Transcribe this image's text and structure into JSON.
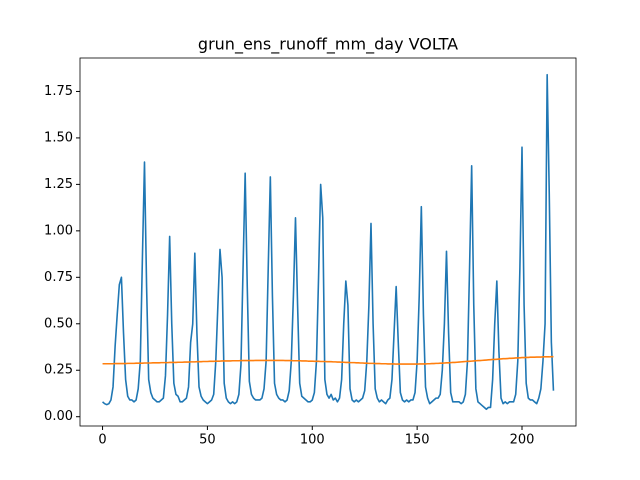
{
  "chart_data": {
    "type": "line",
    "title": "grun_ens_runoff_mm_day VOLTA",
    "xlim": [
      -10.75,
      225.75
    ],
    "xticks": [
      0,
      50,
      100,
      150,
      200
    ],
    "ylim": [
      -0.05,
      1.93
    ],
    "yticks": [
      {
        "value": 0,
        "label": "0.00"
      },
      {
        "value": 0.25,
        "label": "0.25"
      },
      {
        "value": 0.5,
        "label": "0.50"
      },
      {
        "value": 0.75,
        "label": "0.75"
      },
      {
        "value": 1,
        "label": "1.00"
      },
      {
        "value": 1.25,
        "label": "1.25"
      },
      {
        "value": 1.5,
        "label": "1.50"
      },
      {
        "value": 1.75,
        "label": "1.75"
      }
    ],
    "series": [
      {
        "color": "#1f77b4",
        "values": [
          0.08,
          0.07,
          0.065,
          0.07,
          0.09,
          0.16,
          0.38,
          0.55,
          0.71,
          0.75,
          0.45,
          0.2,
          0.11,
          0.09,
          0.09,
          0.08,
          0.09,
          0.15,
          0.3,
          0.85,
          1.37,
          0.7,
          0.2,
          0.13,
          0.1,
          0.09,
          0.08,
          0.08,
          0.09,
          0.1,
          0.22,
          0.55,
          0.97,
          0.5,
          0.18,
          0.12,
          0.11,
          0.08,
          0.08,
          0.09,
          0.1,
          0.16,
          0.4,
          0.5,
          0.88,
          0.45,
          0.16,
          0.11,
          0.09,
          0.08,
          0.07,
          0.08,
          0.09,
          0.12,
          0.3,
          0.6,
          0.9,
          0.75,
          0.18,
          0.1,
          0.08,
          0.07,
          0.08,
          0.07,
          0.08,
          0.12,
          0.28,
          0.8,
          1.31,
          0.7,
          0.19,
          0.12,
          0.1,
          0.09,
          0.09,
          0.09,
          0.1,
          0.15,
          0.3,
          0.8,
          1.29,
          0.65,
          0.18,
          0.12,
          0.1,
          0.09,
          0.09,
          0.08,
          0.09,
          0.14,
          0.3,
          0.65,
          1.07,
          0.6,
          0.18,
          0.11,
          0.1,
          0.09,
          0.08,
          0.08,
          0.09,
          0.13,
          0.3,
          0.75,
          1.25,
          1.07,
          0.2,
          0.12,
          0.1,
          0.12,
          0.09,
          0.1,
          0.08,
          0.1,
          0.2,
          0.5,
          0.73,
          0.6,
          0.15,
          0.09,
          0.08,
          0.09,
          0.08,
          0.09,
          0.1,
          0.14,
          0.3,
          0.6,
          1.04,
          0.5,
          0.15,
          0.1,
          0.08,
          0.09,
          0.08,
          0.07,
          0.09,
          0.1,
          0.2,
          0.45,
          0.7,
          0.4,
          0.13,
          0.09,
          0.08,
          0.09,
          0.08,
          0.09,
          0.09,
          0.13,
          0.3,
          0.65,
          1.13,
          0.55,
          0.16,
          0.1,
          0.07,
          0.08,
          0.09,
          0.1,
          0.1,
          0.12,
          0.25,
          0.5,
          0.89,
          0.45,
          0.13,
          0.08,
          0.08,
          0.08,
          0.08,
          0.07,
          0.08,
          0.12,
          0.3,
          0.8,
          1.35,
          0.6,
          0.15,
          0.08,
          0.07,
          0.06,
          0.05,
          0.04,
          0.05,
          0.05,
          0.2,
          0.5,
          0.73,
          0.35,
          0.1,
          0.07,
          0.08,
          0.07,
          0.08,
          0.08,
          0.08,
          0.12,
          0.3,
          0.8,
          1.45,
          0.6,
          0.18,
          0.1,
          0.09,
          0.09,
          0.08,
          0.07,
          0.1,
          0.15,
          0.3,
          0.5,
          1.84,
          1.2,
          0.4,
          0.14
        ]
      },
      {
        "color": "#ff7f0e",
        "values": [
          0.285,
          0.285,
          0.285,
          0.285,
          0.285,
          0.285,
          0.286,
          0.286,
          0.286,
          0.286,
          0.286,
          0.286,
          0.287,
          0.287,
          0.287,
          0.287,
          0.288,
          0.288,
          0.288,
          0.288,
          0.289,
          0.289,
          0.289,
          0.289,
          0.29,
          0.29,
          0.29,
          0.29,
          0.291,
          0.291,
          0.291,
          0.291,
          0.292,
          0.292,
          0.292,
          0.292,
          0.293,
          0.293,
          0.293,
          0.294,
          0.294,
          0.294,
          0.295,
          0.295,
          0.295,
          0.296,
          0.296,
          0.296,
          0.297,
          0.297,
          0.297,
          0.298,
          0.298,
          0.298,
          0.299,
          0.299,
          0.299,
          0.3,
          0.3,
          0.3,
          0.3,
          0.3,
          0.301,
          0.301,
          0.301,
          0.301,
          0.302,
          0.302,
          0.302,
          0.302,
          0.302,
          0.302,
          0.302,
          0.303,
          0.303,
          0.303,
          0.303,
          0.303,
          0.303,
          0.303,
          0.303,
          0.303,
          0.303,
          0.303,
          0.303,
          0.303,
          0.303,
          0.302,
          0.302,
          0.302,
          0.302,
          0.301,
          0.301,
          0.301,
          0.301,
          0.3,
          0.3,
          0.3,
          0.299,
          0.299,
          0.299,
          0.298,
          0.298,
          0.298,
          0.297,
          0.297,
          0.297,
          0.296,
          0.296,
          0.296,
          0.295,
          0.295,
          0.294,
          0.294,
          0.293,
          0.293,
          0.292,
          0.292,
          0.291,
          0.291,
          0.291,
          0.29,
          0.29,
          0.289,
          0.289,
          0.288,
          0.288,
          0.287,
          0.287,
          0.287,
          0.286,
          0.286,
          0.286,
          0.285,
          0.285,
          0.285,
          0.284,
          0.284,
          0.284,
          0.284,
          0.283,
          0.283,
          0.283,
          0.283,
          0.283,
          0.283,
          0.283,
          0.283,
          0.283,
          0.283,
          0.283,
          0.284,
          0.284,
          0.284,
          0.284,
          0.285,
          0.285,
          0.286,
          0.286,
          0.287,
          0.287,
          0.288,
          0.288,
          0.289,
          0.29,
          0.29,
          0.291,
          0.292,
          0.292,
          0.293,
          0.294,
          0.295,
          0.296,
          0.297,
          0.298,
          0.298,
          0.299,
          0.3,
          0.301,
          0.302,
          0.302,
          0.303,
          0.304,
          0.305,
          0.306,
          0.307,
          0.308,
          0.308,
          0.309,
          0.31,
          0.311,
          0.312,
          0.312,
          0.313,
          0.314,
          0.314,
          0.315,
          0.316,
          0.316,
          0.317,
          0.318,
          0.318,
          0.319,
          0.319,
          0.32,
          0.32,
          0.32,
          0.321,
          0.321,
          0.321,
          0.322,
          0.322,
          0.322,
          0.322,
          0.323,
          0.323
        ]
      }
    ]
  }
}
